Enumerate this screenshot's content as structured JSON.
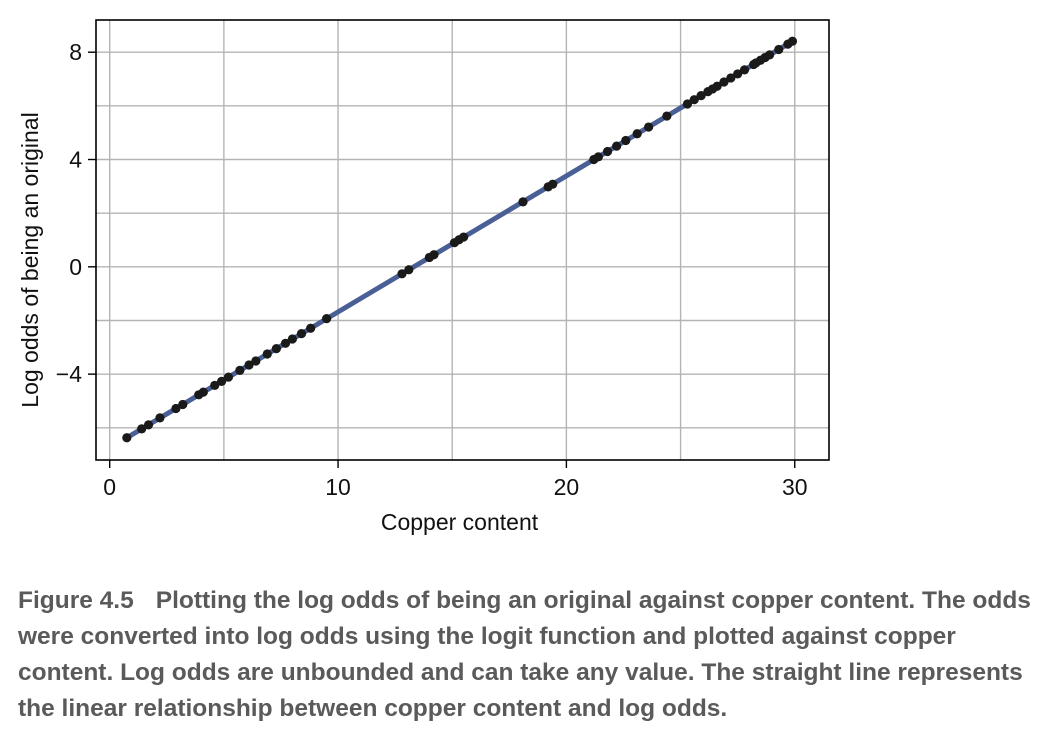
{
  "chart_data": {
    "type": "scatter",
    "xlabel": "Copper content",
    "ylabel": "Log odds of being an original",
    "xlim": [
      -0.6,
      31.5
    ],
    "ylim": [
      -7.2,
      9.2
    ],
    "x_ticks": [
      0,
      10,
      20,
      30
    ],
    "y_ticks": [
      -4,
      0,
      4,
      8
    ],
    "x_tick_labels": [
      "0",
      "10",
      "20",
      "30"
    ],
    "y_tick_labels": [
      "−4",
      "0",
      "4",
      "8"
    ],
    "grid": true,
    "x_minor_grid": [
      5,
      15,
      25
    ],
    "y_minor_grid": [
      -6,
      -2,
      2,
      6
    ],
    "fit_line": {
      "intercept": -6.75,
      "slope": 0.5069,
      "x_range": [
        0.75,
        29.9
      ],
      "color": "#4a5f96"
    },
    "point_color": "#1a1a1a",
    "points_x": [
      0.75,
      1.4,
      1.7,
      2.2,
      2.9,
      3.2,
      3.9,
      4.1,
      4.6,
      4.9,
      5.2,
      5.7,
      6.1,
      6.4,
      6.9,
      7.3,
      7.7,
      8.0,
      8.4,
      8.8,
      9.5,
      12.8,
      13.1,
      14.0,
      14.2,
      15.1,
      15.3,
      15.5,
      18.1,
      19.2,
      19.4,
      21.2,
      21.4,
      21.8,
      22.2,
      22.6,
      23.1,
      23.6,
      24.4,
      25.3,
      25.6,
      25.9,
      26.2,
      26.4,
      26.6,
      26.9,
      27.2,
      27.5,
      27.8,
      28.2,
      28.3,
      28.5,
      28.7,
      28.9,
      29.3,
      29.7,
      29.9
    ],
    "points_y": [
      -6.37,
      -6.04,
      -5.89,
      -5.63,
      -5.28,
      -5.13,
      -4.77,
      -4.67,
      -4.42,
      -4.27,
      -4.11,
      -3.86,
      -3.66,
      -3.51,
      -3.25,
      -3.05,
      -2.85,
      -2.69,
      -2.49,
      -2.29,
      -1.93,
      -0.26,
      -0.11,
      0.35,
      0.45,
      0.9,
      1.01,
      1.11,
      2.42,
      2.98,
      3.08,
      4.0,
      4.1,
      4.3,
      4.5,
      4.71,
      4.96,
      5.21,
      5.62,
      6.07,
      6.23,
      6.38,
      6.53,
      6.63,
      6.73,
      6.89,
      7.04,
      7.19,
      7.34,
      7.54,
      7.6,
      7.7,
      7.8,
      7.9,
      8.1,
      8.3,
      8.41
    ]
  },
  "caption": {
    "figure_number": "Figure 4.5",
    "text": "Plotting the log odds of being an original against copper content. The odds were converted into log odds using the logit function and plotted against copper content. Log odds are unbounded and can take any value. The straight line represents the linear relationship between copper content and log odds."
  }
}
